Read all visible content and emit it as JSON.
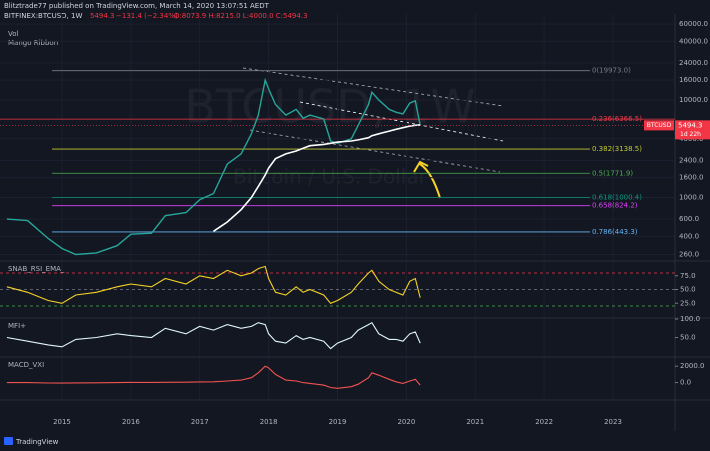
{
  "header": {
    "publisher": "Blitztrade77 published on TradingView.com, March 14, 2020 13:07:51 AEDT",
    "symbol": "BITFINEX:BTCUSD, 1W",
    "last": "5494.3",
    "change": "−131.4 (−2.34%)",
    "ohlc": "O:8073.9 H:8215.0 L:4000.0 C:5494.3"
  },
  "footer": {
    "brand": "TradingView"
  },
  "chart_data": {
    "type": "line",
    "watermark": "BTCUSD, 1W",
    "watermark_sub": "Bitcoin / U.S. Dollar",
    "volume_label": "Vol",
    "log_y": true,
    "x": [
      2014.2,
      2014.5,
      2014.8,
      2015.0,
      2015.2,
      2015.5,
      2015.8,
      2016.0,
      2016.3,
      2016.5,
      2016.8,
      2017.0,
      2017.2,
      2017.4,
      2017.6,
      2017.75,
      2017.85,
      2017.95,
      2018.0,
      2018.1,
      2018.25,
      2018.4,
      2018.5,
      2018.6,
      2018.8,
      2018.9,
      2019.0,
      2019.2,
      2019.3,
      2019.45,
      2019.5,
      2019.6,
      2019.75,
      2019.85,
      2019.95,
      2020.05,
      2020.13,
      2020.2
    ],
    "xlim": [
      2014.1,
      2023.9
    ],
    "xticks": [
      2015,
      2016,
      2017,
      2018,
      2019,
      2020,
      2021,
      2022,
      2023
    ],
    "ylim": [
      228.5,
      76200
    ],
    "yticks": [
      {
        "value": 60000,
        "label": "60000.0"
      },
      {
        "value": 40000,
        "label": "40000.0"
      },
      {
        "value": 24000,
        "label": "24000.0"
      },
      {
        "value": 16000,
        "label": "16000.0"
      },
      {
        "value": 10000,
        "label": "10000.0"
      },
      {
        "value": 4000,
        "label": "4000.0"
      },
      {
        "value": 2400,
        "label": "2400.0"
      },
      {
        "value": 1600,
        "label": "1600.0"
      },
      {
        "value": 1000,
        "label": "1000.0"
      },
      {
        "value": 600,
        "label": "600.0"
      },
      {
        "value": 400,
        "label": "400.0"
      },
      {
        "value": 260,
        "label": "260.0"
      }
    ],
    "series": [
      {
        "name": "BTCUSD",
        "color": "#26a69a",
        "values": [
          600,
          580,
          380,
          300,
          260,
          270,
          320,
          420,
          430,
          650,
          700,
          950,
          1100,
          2200,
          2800,
          4500,
          7000,
          16000,
          13000,
          9000,
          7000,
          8000,
          6500,
          7000,
          6400,
          3800,
          3600,
          4000,
          5500,
          9000,
          12000,
          10000,
          8000,
          7500,
          7200,
          9300,
          9800,
          5494.3
        ]
      },
      {
        "name": "Mango Ribbon",
        "color": "#ffffff",
        "values": [
          null,
          null,
          null,
          null,
          null,
          null,
          null,
          null,
          null,
          null,
          null,
          null,
          450,
          560,
          750,
          1000,
          1300,
          1700,
          2000,
          2500,
          2800,
          3000,
          3200,
          3400,
          3500,
          3600,
          3700,
          3800,
          3900,
          4100,
          4300,
          4500,
          4800,
          5000,
          5200,
          5400,
          5500,
          5550
        ]
      }
    ],
    "fib_levels": [
      {
        "value": 19973.0,
        "label": "0(19973.0)",
        "color": "#787b86"
      },
      {
        "value": 6366.5,
        "label": "0.236(6366.5)",
        "color": "#f23645"
      },
      {
        "value": 3138.5,
        "label": "0.382(3138.5)",
        "color": "#c0ca33"
      },
      {
        "value": 1771.9,
        "label": "0.5(1771.9)",
        "color": "#4caf50"
      },
      {
        "value": 1000.4,
        "label": "0.618(1000.4)",
        "color": "#089981"
      },
      {
        "value": 824.2,
        "label": "0.658(824.2)",
        "color": "#e040fb"
      },
      {
        "value": 443.3,
        "label": "0.786(443.3)",
        "color": "#64b5f6"
      }
    ],
    "price_tag": {
      "value": 5494.3,
      "label": "5494.3",
      "countdown": "1d 22h",
      "color": "#f23645"
    },
    "panes": [
      {
        "title": "SNAB_RSI_EMA_",
        "ylim": [
          0,
          100
        ],
        "yticks": [
          {
            "value": 75,
            "label": "75.0"
          },
          {
            "value": 50,
            "label": "50.0"
          },
          {
            "value": 25,
            "label": "25.0"
          }
        ],
        "bands": [
          80,
          50,
          20
        ],
        "series": [
          {
            "color": "#f5d327",
            "values": [
              55,
              45,
              30,
              25,
              40,
              45,
              55,
              60,
              55,
              70,
              60,
              75,
              70,
              85,
              75,
              80,
              88,
              92,
              70,
              45,
              40,
              55,
              45,
              50,
              40,
              25,
              30,
              45,
              60,
              80,
              85,
              65,
              50,
              45,
              40,
              65,
              70,
              35
            ]
          }
        ]
      },
      {
        "title": "MFI+",
        "ylim": [
          0,
          100
        ],
        "yticks": [
          {
            "value": 100,
            "label": "100.0"
          },
          {
            "value": 50,
            "label": "50.0"
          }
        ],
        "series": [
          {
            "color": "#e0f7fa",
            "values": [
              50,
              40,
              30,
              25,
              45,
              50,
              60,
              55,
              50,
              75,
              60,
              80,
              70,
              85,
              75,
              80,
              90,
              85,
              60,
              40,
              35,
              55,
              45,
              50,
              40,
              20,
              35,
              50,
              70,
              85,
              90,
              60,
              45,
              45,
              40,
              60,
              65,
              35
            ]
          }
        ]
      },
      {
        "title": "MACD_VXI",
        "ylim": [
          -2000,
          3000
        ],
        "yticks": [
          {
            "value": 2000,
            "label": "2000.0"
          },
          {
            "value": 0,
            "label": "0.0"
          }
        ],
        "series": [
          {
            "color": "#ef5350",
            "values": [
              0,
              0,
              -50,
              -60,
              -40,
              -20,
              0,
              20,
              30,
              40,
              50,
              80,
              100,
              200,
              300,
              600,
              1200,
              2000,
              1800,
              1000,
              300,
              200,
              0,
              -100,
              -300,
              -600,
              -700,
              -500,
              -200,
              600,
              1200,
              900,
              400,
              100,
              -100,
              200,
              400,
              -300
            ]
          }
        ]
      }
    ]
  }
}
